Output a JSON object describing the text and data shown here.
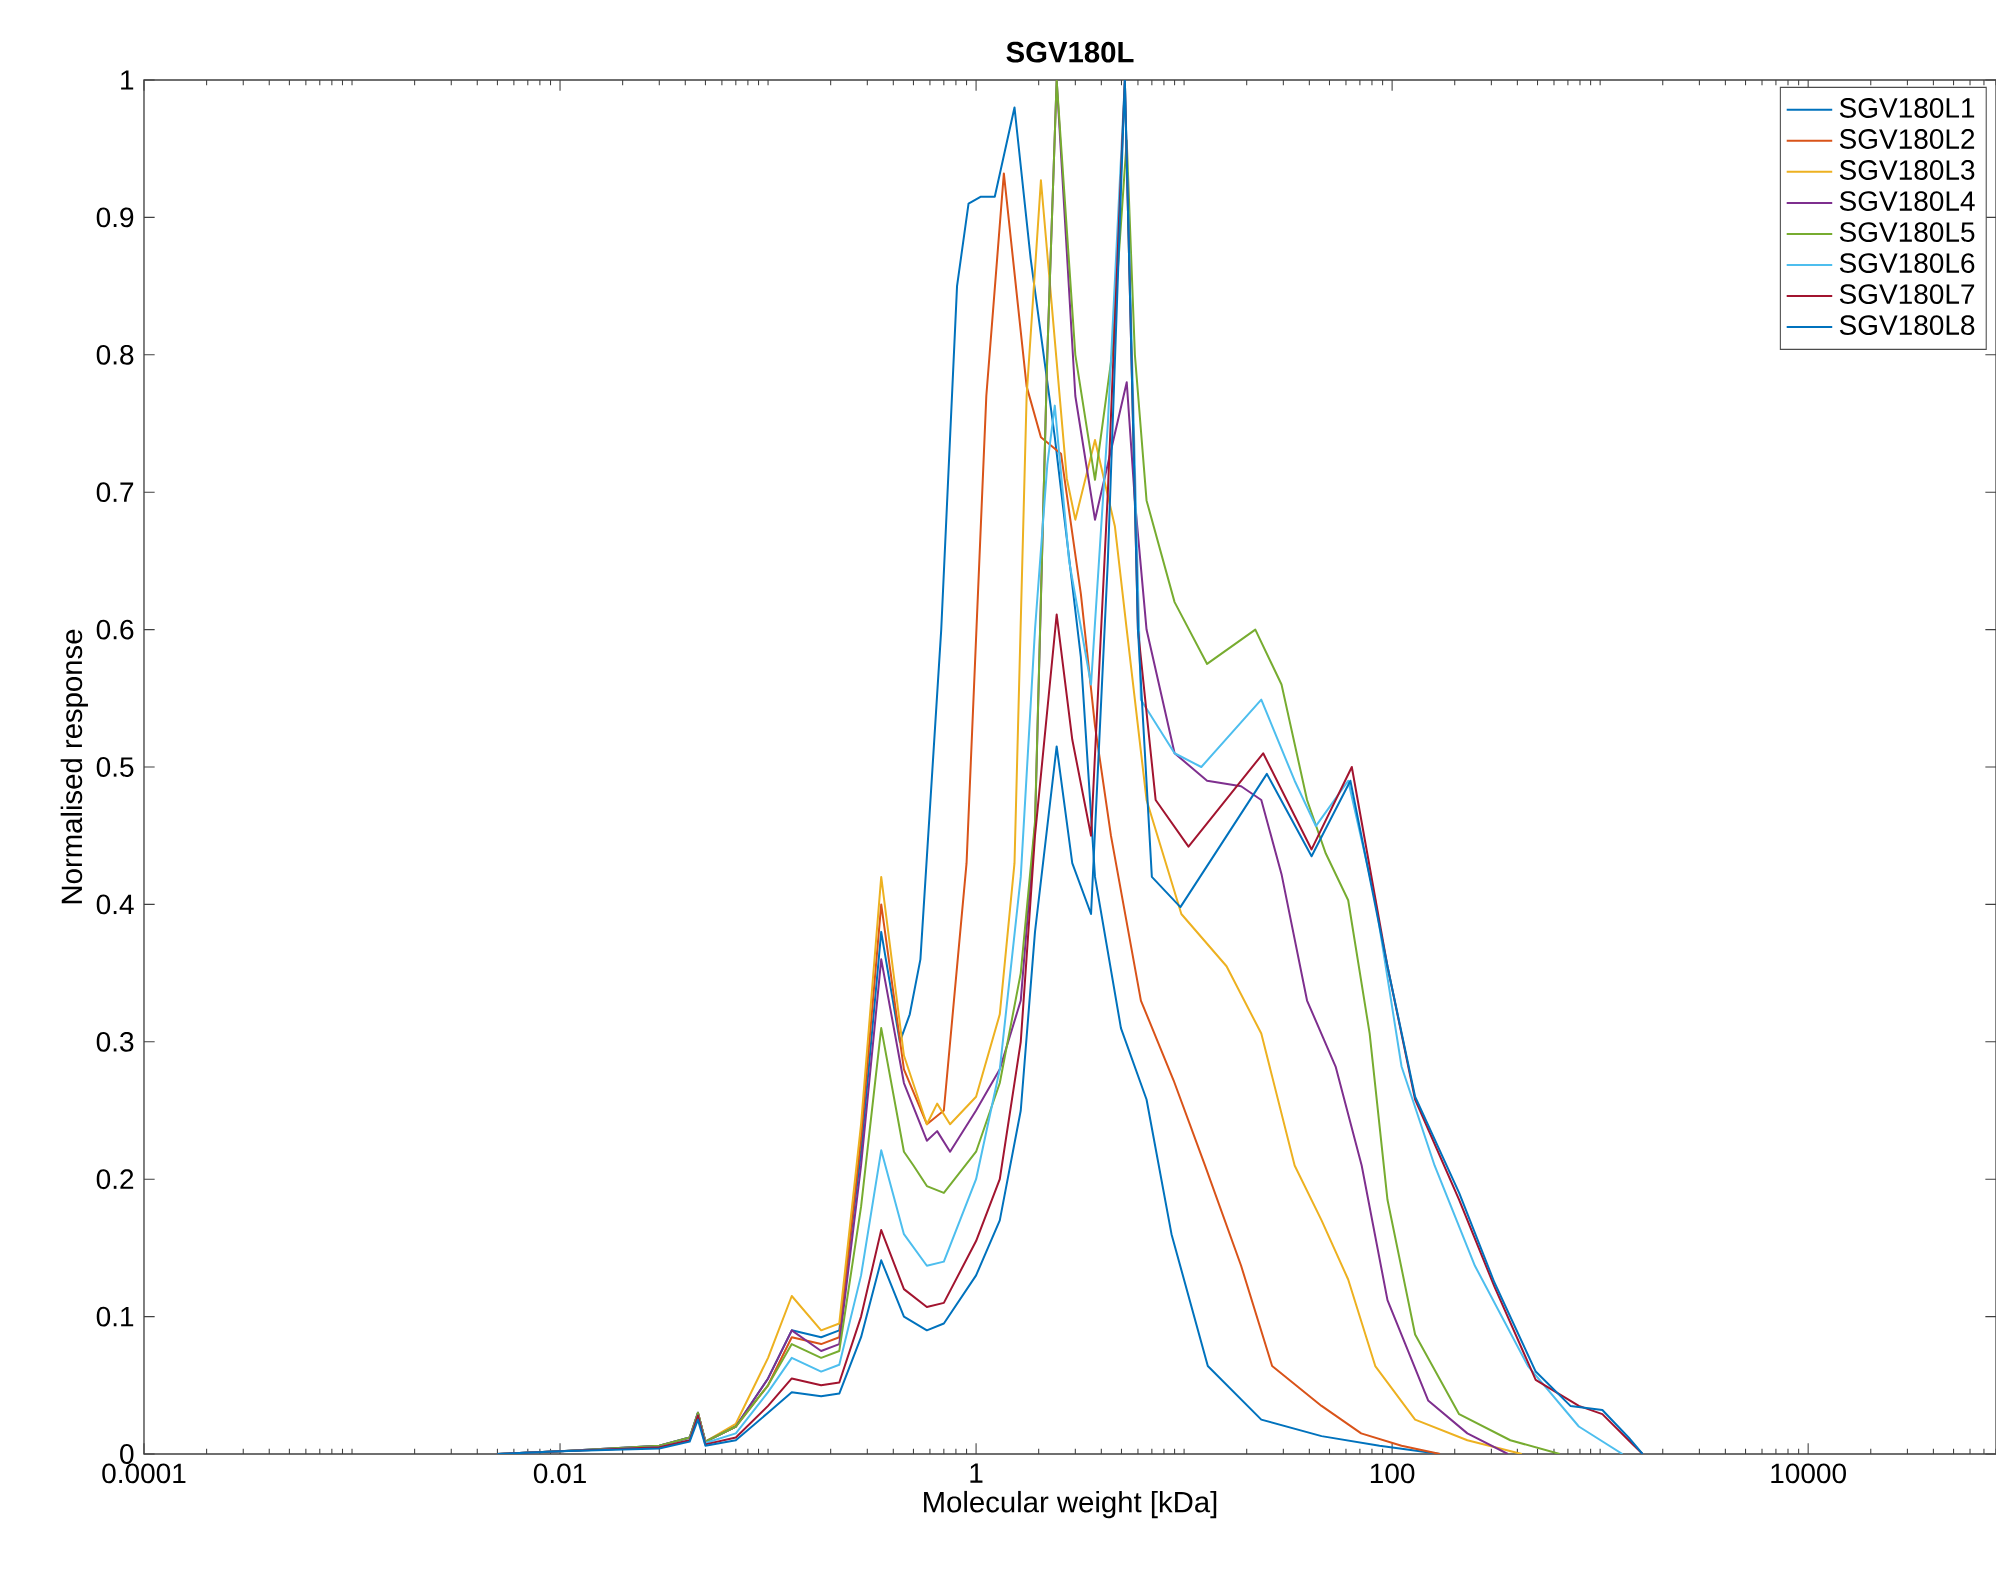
{
  "chart_data": {
    "type": "line",
    "title": "SGV180L",
    "xlabel": "Molecular weight [kDa]",
    "ylabel": "Normalised response",
    "log": "x",
    "xlim": [
      0.0001,
      80000
    ],
    "ylim": [
      0,
      1
    ],
    "xticks": [
      0.0001,
      0.01,
      1,
      100,
      10000
    ],
    "yticks": [
      0,
      0.1,
      0.2,
      0.3,
      0.4,
      0.5,
      0.6,
      0.7,
      0.8,
      0.9,
      1
    ],
    "legend": "top right",
    "series": [
      {
        "name": "SGV180L1",
        "color": "#0072bd",
        "x": [
          0.005,
          0.01,
          0.03,
          0.042,
          0.046,
          0.05,
          0.07,
          0.1,
          0.13,
          0.18,
          0.22,
          0.28,
          0.35,
          0.43,
          0.48,
          0.54,
          0.68,
          0.81,
          0.92,
          1.05,
          1.23,
          1.53,
          1.83,
          2.39,
          3.19,
          3.73,
          4.97,
          6.6,
          8.7,
          13,
          23.5,
          45.8,
          87,
          170
        ],
        "values": [
          0,
          0.002,
          0.006,
          0.012,
          0.03,
          0.009,
          0.02,
          0.055,
          0.09,
          0.085,
          0.09,
          0.22,
          0.38,
          0.3,
          0.32,
          0.36,
          0.6,
          0.85,
          0.91,
          0.915,
          0.915,
          0.98,
          0.87,
          0.74,
          0.58,
          0.42,
          0.31,
          0.258,
          0.16,
          0.064,
          0.025,
          0.013,
          0.006,
          0
        ]
      },
      {
        "name": "SGV180L2",
        "color": "#d95319",
        "x": [
          0.046,
          0.05,
          0.07,
          0.1,
          0.13,
          0.18,
          0.22,
          0.28,
          0.35,
          0.45,
          0.58,
          0.7,
          0.9,
          1.12,
          1.36,
          1.75,
          2.05,
          2.56,
          3.19,
          3.73,
          4.45,
          6.2,
          8.9,
          12.6,
          18.8,
          26.5,
          45.8,
          71,
          111,
          170
        ],
        "values": [
          0.03,
          0.009,
          0.02,
          0.05,
          0.085,
          0.08,
          0.085,
          0.23,
          0.4,
          0.28,
          0.24,
          0.25,
          0.43,
          0.77,
          0.932,
          0.777,
          0.74,
          0.728,
          0.626,
          0.53,
          0.45,
          0.33,
          0.272,
          0.21,
          0.137,
          0.064,
          0.035,
          0.015,
          0.006,
          0
        ]
      },
      {
        "name": "SGV180L3",
        "color": "#edb120",
        "x": [
          0.046,
          0.05,
          0.07,
          0.1,
          0.13,
          0.18,
          0.22,
          0.28,
          0.35,
          0.45,
          0.58,
          0.65,
          0.75,
          1.0,
          1.3,
          1.53,
          1.75,
          2.05,
          2.73,
          3.0,
          3.73,
          4.65,
          5.3,
          6.6,
          9.7,
          16,
          23.5,
          34,
          45.8,
          61.5,
          83,
          129,
          230,
          420
        ],
        "values": [
          0.03,
          0.009,
          0.022,
          0.07,
          0.115,
          0.09,
          0.095,
          0.24,
          0.42,
          0.29,
          0.24,
          0.255,
          0.24,
          0.26,
          0.32,
          0.43,
          0.77,
          0.927,
          0.71,
          0.68,
          0.738,
          0.675,
          0.6,
          0.476,
          0.393,
          0.355,
          0.306,
          0.21,
          0.17,
          0.127,
          0.064,
          0.025,
          0.01,
          0
        ]
      },
      {
        "name": "SGV180L4",
        "color": "#7e2f8e",
        "x": [
          0.005,
          0.01,
          0.03,
          0.042,
          0.046,
          0.05,
          0.07,
          0.1,
          0.13,
          0.18,
          0.22,
          0.28,
          0.35,
          0.45,
          0.58,
          0.65,
          0.75,
          1.0,
          1.3,
          1.64,
          1.92,
          2.2,
          2.44,
          3.0,
          3.73,
          5.3,
          5.8,
          6.6,
          9.0,
          12.9,
          18.8,
          23.5,
          29.4,
          39,
          53.5,
          71.4,
          95,
          149,
          230,
          360
        ],
        "values": [
          0,
          0.002,
          0.006,
          0.012,
          0.03,
          0.009,
          0.02,
          0.055,
          0.09,
          0.075,
          0.08,
          0.21,
          0.36,
          0.27,
          0.228,
          0.235,
          0.22,
          0.25,
          0.28,
          0.33,
          0.457,
          0.8,
          1.0,
          0.77,
          0.68,
          0.78,
          0.694,
          0.6,
          0.51,
          0.49,
          0.486,
          0.476,
          0.422,
          0.33,
          0.282,
          0.21,
          0.112,
          0.039,
          0.015,
          0
        ]
      },
      {
        "name": "SGV180L5",
        "color": "#77ac30",
        "x": [
          0.005,
          0.01,
          0.03,
          0.042,
          0.046,
          0.05,
          0.07,
          0.1,
          0.13,
          0.18,
          0.22,
          0.28,
          0.35,
          0.45,
          0.5,
          0.58,
          0.7,
          1.0,
          1.3,
          1.64,
          1.92,
          2.2,
          2.44,
          3.0,
          3.73,
          4.5,
          5.3,
          5.8,
          6.6,
          9.0,
          12.9,
          22,
          29.4,
          39,
          48,
          61.5,
          78,
          95,
          129,
          210,
          370,
          640
        ],
        "values": [
          0,
          0.002,
          0.006,
          0.012,
          0.03,
          0.009,
          0.02,
          0.05,
          0.08,
          0.07,
          0.075,
          0.18,
          0.31,
          0.22,
          0.21,
          0.195,
          0.19,
          0.22,
          0.27,
          0.35,
          0.46,
          0.8,
          1.0,
          0.8,
          0.709,
          0.8,
          0.956,
          0.8,
          0.694,
          0.62,
          0.575,
          0.6,
          0.56,
          0.476,
          0.437,
          0.403,
          0.306,
          0.185,
          0.087,
          0.029,
          0.01,
          0
        ]
      },
      {
        "name": "SGV180L6",
        "color": "#4dbeee",
        "x": [
          0.005,
          0.01,
          0.03,
          0.042,
          0.046,
          0.05,
          0.07,
          0.1,
          0.13,
          0.18,
          0.22,
          0.28,
          0.35,
          0.45,
          0.58,
          0.7,
          1.0,
          1.3,
          1.64,
          1.92,
          2.2,
          2.39,
          2.8,
          3.57,
          4.3,
          5.19,
          6.2,
          9.0,
          12.1,
          23.5,
          34,
          43,
          61.5,
          83,
          111,
          160,
          250,
          450,
          790,
          1280
        ],
        "values": [
          0,
          0.002,
          0.005,
          0.01,
          0.028,
          0.008,
          0.015,
          0.045,
          0.07,
          0.06,
          0.065,
          0.13,
          0.221,
          0.16,
          0.137,
          0.14,
          0.2,
          0.28,
          0.42,
          0.6,
          0.72,
          0.763,
          0.65,
          0.56,
          0.75,
          1.0,
          0.549,
          0.51,
          0.5,
          0.549,
          0.49,
          0.457,
          0.49,
          0.403,
          0.282,
          0.21,
          0.137,
          0.064,
          0.02,
          0
        ]
      },
      {
        "name": "SGV180L7",
        "color": "#a2142f",
        "x": [
          0.005,
          0.01,
          0.03,
          0.042,
          0.046,
          0.05,
          0.07,
          0.1,
          0.13,
          0.18,
          0.22,
          0.28,
          0.35,
          0.45,
          0.58,
          0.7,
          1.0,
          1.3,
          1.64,
          1.92,
          2.44,
          2.9,
          3.57,
          4.3,
          5.19,
          6.0,
          7.3,
          10.5,
          24,
          41,
          64,
          95,
          129,
          210,
          310,
          490,
          790,
          1025,
          1370,
          1600
        ],
        "values": [
          0,
          0.002,
          0.005,
          0.01,
          0.028,
          0.007,
          0.012,
          0.035,
          0.055,
          0.05,
          0.052,
          0.1,
          0.163,
          0.12,
          0.107,
          0.11,
          0.155,
          0.2,
          0.3,
          0.45,
          0.611,
          0.52,
          0.45,
          0.7,
          1.0,
          0.6,
          0.476,
          0.442,
          0.51,
          0.44,
          0.5,
          0.355,
          0.258,
          0.185,
          0.122,
          0.054,
          0.035,
          0.029,
          0.01,
          0
        ]
      },
      {
        "name": "SGV180L8",
        "color": "#0072bd",
        "x": [
          0.005,
          0.01,
          0.03,
          0.042,
          0.046,
          0.05,
          0.07,
          0.1,
          0.13,
          0.18,
          0.22,
          0.28,
          0.35,
          0.45,
          0.58,
          0.7,
          1.0,
          1.3,
          1.64,
          1.92,
          2.44,
          2.9,
          3.57,
          4.3,
          5.19,
          6.0,
          7.0,
          9.6,
          25,
          41,
          63,
          95,
          129,
          210,
          310,
          490,
          720,
          1025,
          1370,
          1600
        ],
        "values": [
          0,
          0.002,
          0.004,
          0.009,
          0.025,
          0.006,
          0.01,
          0.03,
          0.045,
          0.042,
          0.044,
          0.085,
          0.141,
          0.1,
          0.09,
          0.095,
          0.13,
          0.17,
          0.25,
          0.38,
          0.515,
          0.43,
          0.393,
          0.65,
          1.0,
          0.6,
          0.42,
          0.398,
          0.495,
          0.435,
          0.49,
          0.355,
          0.26,
          0.19,
          0.125,
          0.06,
          0.035,
          0.032,
          0.012,
          0
        ]
      }
    ]
  }
}
